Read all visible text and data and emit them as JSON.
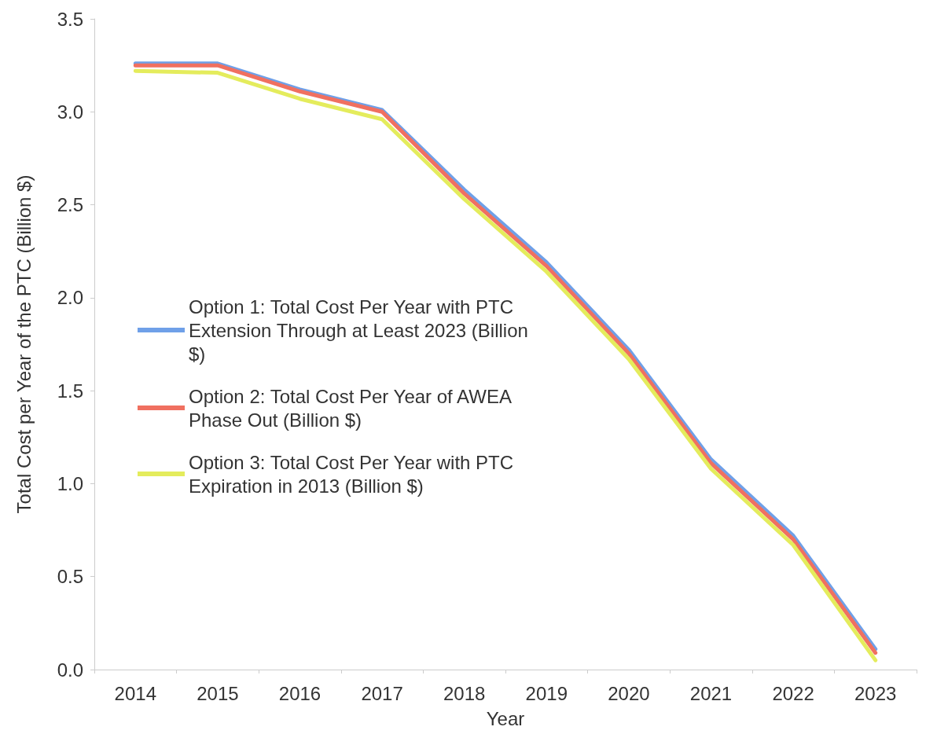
{
  "chart_data": {
    "type": "line",
    "xlabel": "Year",
    "ylabel": "Total Cost per Year of the PTC (Billion $)",
    "categories": [
      "2014",
      "2015",
      "2016",
      "2017",
      "2018",
      "2019",
      "2020",
      "2021",
      "2022",
      "2023"
    ],
    "series": [
      {
        "name": "Option 1: Total Cost Per Year with PTC Extension Through at Least 2023 (Billion $)",
        "color": "#6fa0e8",
        "values": [
          3.26,
          3.26,
          3.12,
          3.01,
          2.58,
          2.19,
          1.72,
          1.13,
          0.72,
          0.11
        ]
      },
      {
        "name": "Option 2: Total Cost Per Year of AWEA Phase Out (Billion $)",
        "color": "#f07060",
        "values": [
          3.25,
          3.25,
          3.11,
          3.0,
          2.56,
          2.17,
          1.7,
          1.11,
          0.7,
          0.09
        ]
      },
      {
        "name": "Option 3: Total Cost Per Year with PTC Expiration in 2013 (Billion $)",
        "color": "#e4ec5c",
        "values": [
          3.22,
          3.21,
          3.07,
          2.96,
          2.53,
          2.14,
          1.67,
          1.08,
          0.67,
          0.05
        ]
      }
    ],
    "ylim": [
      0,
      3.5
    ],
    "yticks": [
      {
        "value": 0,
        "label": "0.0"
      },
      0.5,
      {
        "value": 1,
        "label": "1.0"
      },
      1.5,
      {
        "value": 2,
        "label": "2.0"
      },
      2.5,
      {
        "value": 3,
        "label": "3.0"
      },
      3.5
    ],
    "grid": false,
    "legend": "left",
    "marker": "none",
    "line_style": "solid"
  }
}
